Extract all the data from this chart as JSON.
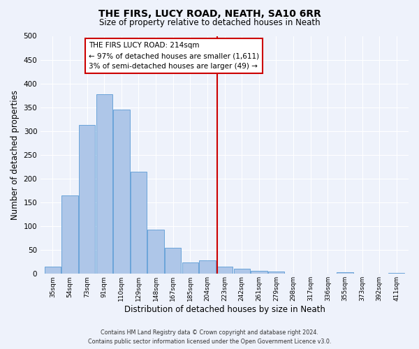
{
  "title": "THE FIRS, LUCY ROAD, NEATH, SA10 6RR",
  "subtitle": "Size of property relative to detached houses in Neath",
  "xlabel": "Distribution of detached houses by size in Neath",
  "ylabel": "Number of detached properties",
  "categories": [
    "35sqm",
    "54sqm",
    "73sqm",
    "91sqm",
    "110sqm",
    "129sqm",
    "148sqm",
    "167sqm",
    "185sqm",
    "204sqm",
    "223sqm",
    "242sqm",
    "261sqm",
    "279sqm",
    "298sqm",
    "317sqm",
    "336sqm",
    "355sqm",
    "373sqm",
    "392sqm",
    "411sqm"
  ],
  "values": [
    15,
    165,
    313,
    378,
    345,
    215,
    93,
    55,
    24,
    29,
    15,
    10,
    7,
    5,
    1,
    0,
    0,
    3,
    0,
    0,
    2
  ],
  "bar_color": "#aec6e8",
  "bar_edge_color": "#5b9bd5",
  "background_color": "#eef2fb",
  "grid_color": "#ffffff",
  "vline_x": 9.55,
  "vline_color": "#cc0000",
  "ylim": [
    0,
    500
  ],
  "yticks": [
    0,
    50,
    100,
    150,
    200,
    250,
    300,
    350,
    400,
    450,
    500
  ],
  "annotation_title": "THE FIRS LUCY ROAD: 214sqm",
  "annotation_line1": "← 97% of detached houses are smaller (1,611)",
  "annotation_line2": "3% of semi-detached houses are larger (49) →",
  "annotation_box_color": "#ffffff",
  "annotation_box_edge": "#cc0000",
  "footer_line1": "Contains HM Land Registry data © Crown copyright and database right 2024.",
  "footer_line2": "Contains public sector information licensed under the Open Government Licence v3.0."
}
